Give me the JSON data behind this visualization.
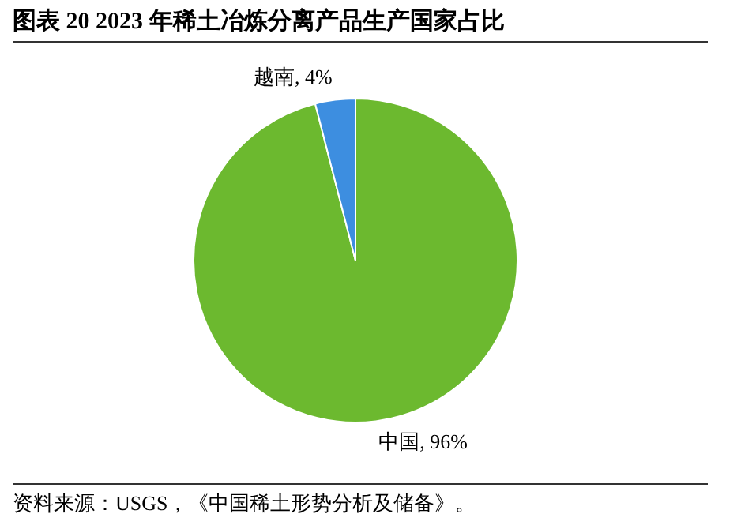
{
  "chart_data": {
    "type": "pie",
    "title": "图表 20 2023 年稀土冶炼分离产品生产国家占比",
    "categories": [
      "中国",
      "越南"
    ],
    "values": [
      96,
      4
    ],
    "colors": [
      "#6cb92f",
      "#3d8ee0"
    ],
    "value_labels": [
      "96%",
      "4%"
    ],
    "legend": false,
    "annotations": [
      "资料来源：USGS，《中国稀土形势分析及储备》。"
    ]
  }
}
